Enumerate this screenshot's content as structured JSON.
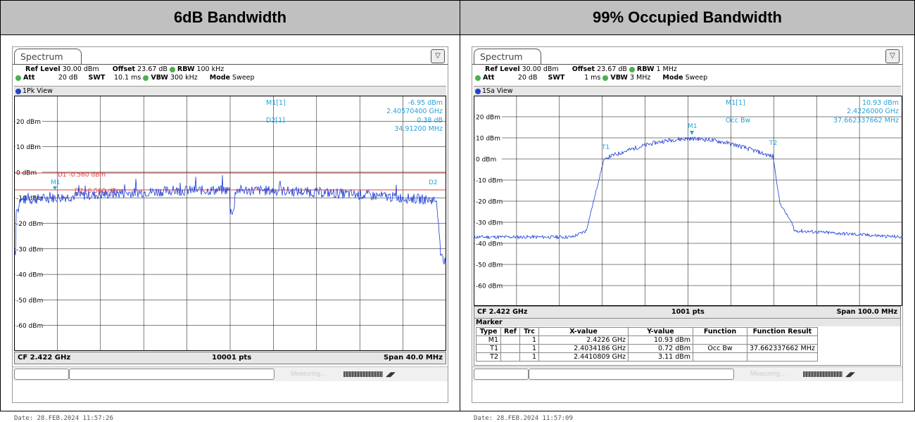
{
  "left": {
    "header": "6dB Bandwidth",
    "tab": "Spectrum",
    "params": {
      "ref_level_label": "Ref Level",
      "ref_level": "30.00 dBm",
      "offset_label": "Offset",
      "offset": "23.67 dB",
      "rbw_label": "RBW",
      "rbw": "100 kHz",
      "att_label": "Att",
      "att": "20 dB",
      "swt_label": "SWT",
      "swt": "10.1 ms",
      "vbw_label": "VBW",
      "vbw": "300 kHz",
      "mode_label": "Mode",
      "mode": "Sweep"
    },
    "view": "1Pk View",
    "marker_readout": [
      "M1[1]",
      "-6.95 dBm",
      "2.40570400 GHz",
      "D2[1]",
      "0.38 dB",
      "34.91200 MHz"
    ],
    "yticks": [
      "20 dBm",
      "10 dBm",
      "0 dBm",
      "-10 dBm",
      "-20 dBm",
      "-30 dBm",
      "-40 dBm",
      "-50 dBm",
      "-60 dBm"
    ],
    "lines": {
      "d1": "D1  -0.560 dBm",
      "d2": "D2  -6.560 dBm"
    },
    "marker_labels": [
      "M1",
      "D2"
    ],
    "bottom": {
      "cf": "CF 2.422 GHz",
      "pts": "10001 pts",
      "span": "Span 40.0 MHz"
    },
    "status_text": "Measuring...",
    "date": "Date: 28.FEB.2024  11:57:26"
  },
  "right": {
    "header": "99% Occupied Bandwidth",
    "tab": "Spectrum",
    "params": {
      "ref_level_label": "Ref Level",
      "ref_level": "30.00 dBm",
      "offset_label": "Offset",
      "offset": "23.67 dB",
      "rbw_label": "RBW",
      "rbw": "1 MHz",
      "att_label": "Att",
      "att": "20 dB",
      "swt_label": "SWT",
      "swt": "1 ms",
      "vbw_label": "VBW",
      "vbw": "3 MHz",
      "mode_label": "Mode",
      "mode": "Sweep"
    },
    "view": "1Sa View",
    "marker_readout": [
      "M1[1]",
      "10.93 dBm",
      "2.4226000 GHz",
      "Occ Bw",
      "37.662337662 MHz"
    ],
    "yticks": [
      "20 dBm",
      "10 dBm",
      "0 dBm",
      "-10 dBm",
      "-20 dBm",
      "-30 dBm",
      "-40 dBm",
      "-50 dBm",
      "-60 dBm"
    ],
    "marker_labels": [
      "T1",
      "M1",
      "T2"
    ],
    "bottom": {
      "cf": "CF 2.422 GHz",
      "pts": "1001 pts",
      "span": "Span 100.0 MHz"
    },
    "marker_table": {
      "title": "Marker",
      "headers": [
        "Type",
        "Ref",
        "Trc",
        "X-value",
        "Y-value",
        "Function",
        "Function Result"
      ],
      "rows": [
        [
          "M1",
          "",
          "1",
          "2.4226 GHz",
          "10.93 dBm",
          "",
          ""
        ],
        [
          "T1",
          "",
          "1",
          "2.4034186 GHz",
          "0.72 dBm",
          "Occ Bw",
          "37.662337662 MHz"
        ],
        [
          "T2",
          "",
          "1",
          "2.4410809 GHz",
          "3.11 dBm",
          "",
          ""
        ]
      ]
    },
    "status_text": "Measuring...",
    "date": "Date: 28.FEB.2024  11:57:09"
  },
  "colors": {
    "trace": "#1a3ad6",
    "marker": "#2aa0d8",
    "limit": "#e04040",
    "grid": "#000000"
  }
}
